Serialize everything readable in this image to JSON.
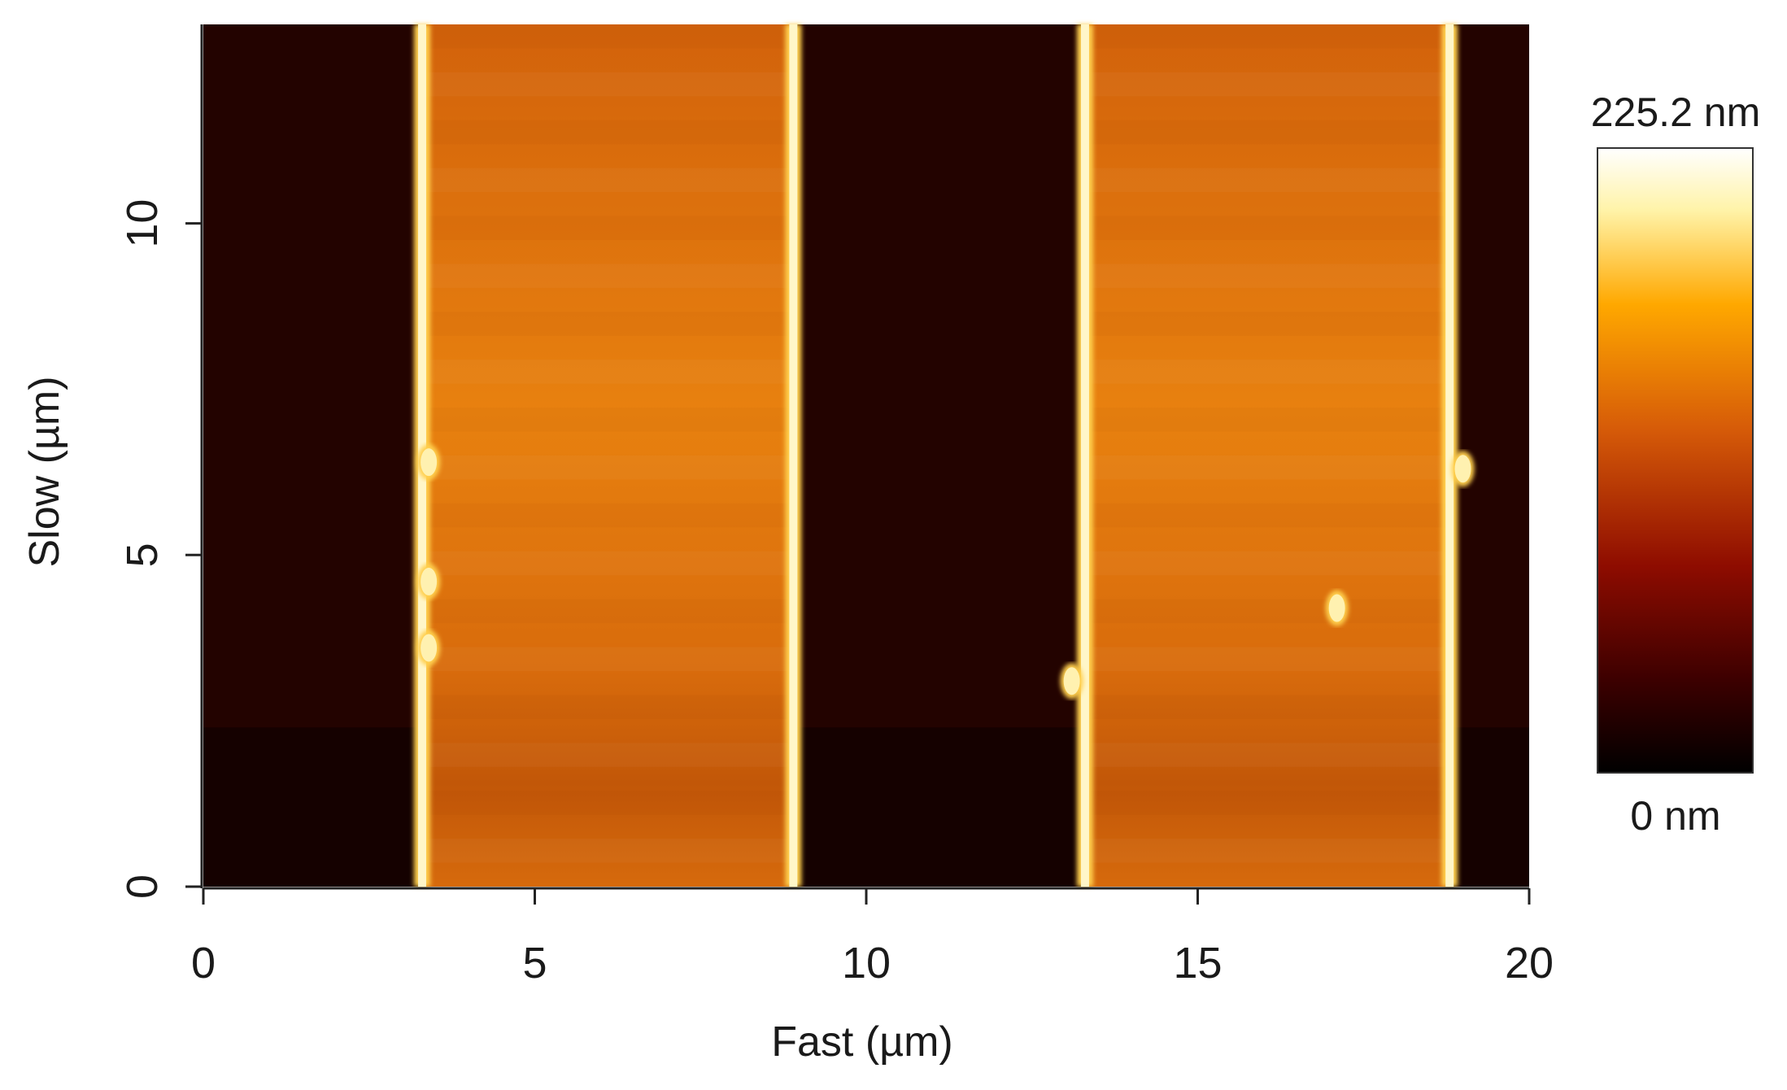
{
  "chart_data": {
    "type": "heatmap",
    "title": "",
    "xlabel": "Fast (µm)",
    "ylabel": "Slow (µm)",
    "xlim": [
      0,
      20
    ],
    "ylim": [
      0,
      13
    ],
    "x_ticks": [
      0,
      5,
      10,
      15,
      20
    ],
    "x_tick_labels": [
      "0",
      "5",
      "10",
      "15",
      "20"
    ],
    "y_ticks": [
      0,
      5,
      10
    ],
    "y_tick_labels": [
      "0",
      "5",
      "10"
    ],
    "colorbar": {
      "max_label": "225.2 nm",
      "min_label": "0 nm",
      "min": 0,
      "max": 225.2,
      "unit": "nm",
      "colors": [
        "#000000",
        "#3d0000",
        "#8e0c00",
        "#d65b08",
        "#ffa800",
        "#fff3a8",
        "#ffffff"
      ]
    },
    "stripes": [
      {
        "x_start": 3.3,
        "x_end": 8.9,
        "height_nm": 140,
        "edge_height_nm": 225
      },
      {
        "x_start": 13.3,
        "x_end": 18.8,
        "height_nm": 140,
        "edge_height_nm": 225
      }
    ],
    "substrate_height_nm": 15,
    "features": [
      {
        "x": 3.4,
        "y": 3.6,
        "label": "particle"
      },
      {
        "x": 3.4,
        "y": 4.6,
        "label": "particle"
      },
      {
        "x": 3.4,
        "y": 6.4,
        "label": "particle"
      },
      {
        "x": 13.1,
        "y": 3.1,
        "label": "particle"
      },
      {
        "x": 19.0,
        "y": 6.3,
        "label": "particle"
      },
      {
        "x": 17.1,
        "y": 4.2,
        "label": "particle"
      }
    ]
  }
}
